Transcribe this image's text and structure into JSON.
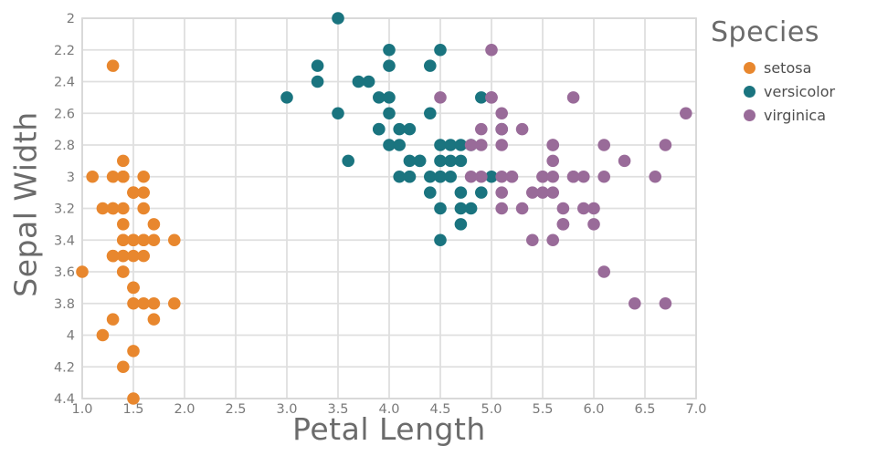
{
  "chart_data": {
    "type": "scatter",
    "xlabel": "Petal Length",
    "ylabel": "Sepal Width",
    "legend": {
      "title": "Species",
      "position": "top-right-outside"
    },
    "axes": {
      "x": {
        "min": 1.0,
        "max": 7.0,
        "tick_values": [
          1.0,
          1.5,
          2.0,
          2.5,
          3.0,
          3.5,
          4.0,
          4.5,
          5.0,
          5.5,
          6.0,
          6.5,
          7.0
        ],
        "tick_labels": [
          "1.0",
          "1.5",
          "2.0",
          "2.5",
          "3.0",
          "3.5",
          "4.0",
          "4.5",
          "5.0",
          "5.5",
          "6.0",
          "6.5",
          "7.0"
        ]
      },
      "y": {
        "min": 2.0,
        "max": 4.4,
        "reversed": true,
        "tick_values": [
          2.0,
          2.2,
          2.4,
          2.6,
          2.8,
          3.0,
          3.2,
          3.4,
          3.6,
          3.8,
          4.0,
          4.2,
          4.4
        ],
        "tick_labels": [
          "2",
          "2.2",
          "2.4",
          "2.6",
          "2.8",
          "3",
          "3.2",
          "3.4",
          "3.6",
          "3.8",
          "4",
          "4.2",
          "4.4"
        ]
      }
    },
    "grid": true,
    "colors": {
      "grid": "#dfdfdf",
      "frame": "#d8d8d8",
      "tick_text": "#7a7a7a",
      "axis_title_text": "#6b6b6b",
      "legend_text": "#4e4e4e"
    },
    "series": [
      {
        "name": "setosa",
        "color": "#E8872E",
        "points": [
          [
            1.4,
            3.5
          ],
          [
            1.4,
            3.0
          ],
          [
            1.3,
            3.2
          ],
          [
            1.5,
            3.1
          ],
          [
            1.4,
            3.6
          ],
          [
            1.7,
            3.9
          ],
          [
            1.4,
            3.4
          ],
          [
            1.5,
            3.4
          ],
          [
            1.4,
            2.9
          ],
          [
            1.5,
            3.1
          ],
          [
            1.5,
            3.7
          ],
          [
            1.6,
            3.4
          ],
          [
            1.4,
            3.0
          ],
          [
            1.1,
            3.0
          ],
          [
            1.2,
            4.0
          ],
          [
            1.5,
            4.4
          ],
          [
            1.3,
            3.9
          ],
          [
            1.4,
            3.5
          ],
          [
            1.7,
            3.8
          ],
          [
            1.5,
            3.8
          ],
          [
            1.7,
            3.4
          ],
          [
            1.5,
            3.7
          ],
          [
            1.0,
            3.6
          ],
          [
            1.7,
            3.3
          ],
          [
            1.9,
            3.4
          ],
          [
            1.6,
            3.0
          ],
          [
            1.6,
            3.4
          ],
          [
            1.5,
            3.5
          ],
          [
            1.4,
            3.4
          ],
          [
            1.6,
            3.2
          ],
          [
            1.6,
            3.1
          ],
          [
            1.5,
            3.4
          ],
          [
            1.5,
            4.1
          ],
          [
            1.4,
            4.2
          ],
          [
            1.5,
            3.1
          ],
          [
            1.2,
            3.2
          ],
          [
            1.3,
            3.5
          ],
          [
            1.4,
            3.6
          ],
          [
            1.3,
            3.0
          ],
          [
            1.5,
            3.4
          ],
          [
            1.3,
            3.5
          ],
          [
            1.3,
            2.3
          ],
          [
            1.3,
            3.2
          ],
          [
            1.6,
            3.5
          ],
          [
            1.9,
            3.8
          ],
          [
            1.4,
            3.0
          ],
          [
            1.6,
            3.8
          ],
          [
            1.4,
            3.2
          ],
          [
            1.5,
            3.7
          ],
          [
            1.4,
            3.3
          ]
        ]
      },
      {
        "name": "versicolor",
        "color": "#1A747F",
        "points": [
          [
            4.7,
            3.2
          ],
          [
            4.5,
            3.2
          ],
          [
            4.9,
            3.1
          ],
          [
            4.0,
            2.3
          ],
          [
            4.6,
            2.8
          ],
          [
            4.5,
            2.8
          ],
          [
            4.7,
            3.3
          ],
          [
            3.3,
            2.4
          ],
          [
            4.6,
            2.9
          ],
          [
            3.9,
            2.7
          ],
          [
            3.5,
            2.0
          ],
          [
            4.2,
            3.0
          ],
          [
            4.0,
            2.2
          ],
          [
            4.7,
            2.9
          ],
          [
            3.6,
            2.9
          ],
          [
            4.4,
            3.1
          ],
          [
            4.5,
            3.0
          ],
          [
            4.1,
            2.7
          ],
          [
            4.5,
            2.2
          ],
          [
            3.9,
            2.5
          ],
          [
            4.8,
            3.2
          ],
          [
            4.0,
            2.8
          ],
          [
            4.9,
            2.5
          ],
          [
            4.7,
            2.8
          ],
          [
            4.3,
            2.9
          ],
          [
            4.4,
            3.0
          ],
          [
            4.8,
            2.8
          ],
          [
            5.0,
            3.0
          ],
          [
            4.5,
            2.9
          ],
          [
            3.5,
            2.6
          ],
          [
            3.8,
            2.4
          ],
          [
            3.7,
            2.4
          ],
          [
            3.9,
            2.7
          ],
          [
            5.1,
            2.7
          ],
          [
            4.5,
            3.0
          ],
          [
            4.5,
            3.4
          ],
          [
            4.7,
            3.1
          ],
          [
            4.4,
            2.3
          ],
          [
            4.1,
            3.0
          ],
          [
            4.0,
            2.5
          ],
          [
            4.4,
            2.6
          ],
          [
            4.6,
            3.0
          ],
          [
            4.0,
            2.6
          ],
          [
            3.3,
            2.3
          ],
          [
            4.2,
            2.7
          ],
          [
            4.2,
            3.0
          ],
          [
            4.2,
            2.9
          ],
          [
            4.3,
            2.9
          ],
          [
            3.0,
            2.5
          ],
          [
            4.1,
            2.8
          ]
        ]
      },
      {
        "name": "virginica",
        "color": "#996B99",
        "points": [
          [
            6.0,
            3.3
          ],
          [
            5.1,
            2.7
          ],
          [
            5.9,
            3.0
          ],
          [
            5.6,
            2.9
          ],
          [
            5.8,
            3.0
          ],
          [
            6.6,
            3.0
          ],
          [
            4.5,
            2.5
          ],
          [
            6.3,
            2.9
          ],
          [
            5.8,
            2.5
          ],
          [
            6.1,
            3.6
          ],
          [
            5.1,
            3.2
          ],
          [
            5.3,
            2.7
          ],
          [
            5.5,
            3.0
          ],
          [
            5.0,
            2.5
          ],
          [
            5.1,
            2.8
          ],
          [
            5.3,
            3.2
          ],
          [
            5.5,
            3.0
          ],
          [
            6.7,
            3.8
          ],
          [
            6.9,
            2.6
          ],
          [
            5.0,
            2.2
          ],
          [
            5.7,
            3.2
          ],
          [
            4.9,
            2.8
          ],
          [
            6.7,
            2.8
          ],
          [
            4.9,
            2.7
          ],
          [
            5.7,
            3.3
          ],
          [
            6.0,
            3.2
          ],
          [
            4.8,
            2.8
          ],
          [
            4.9,
            3.0
          ],
          [
            5.6,
            2.8
          ],
          [
            5.8,
            3.0
          ],
          [
            6.1,
            2.8
          ],
          [
            6.4,
            3.8
          ],
          [
            5.6,
            2.8
          ],
          [
            5.1,
            2.6
          ],
          [
            5.6,
            3.0
          ],
          [
            6.1,
            3.0
          ],
          [
            5.6,
            3.4
          ],
          [
            5.5,
            3.1
          ],
          [
            4.8,
            3.0
          ],
          [
            5.4,
            3.1
          ],
          [
            5.6,
            3.1
          ],
          [
            5.1,
            3.1
          ],
          [
            5.1,
            2.7
          ],
          [
            5.9,
            3.2
          ],
          [
            5.7,
            3.3
          ],
          [
            5.2,
            3.0
          ],
          [
            5.0,
            2.5
          ],
          [
            5.2,
            3.0
          ],
          [
            5.4,
            3.4
          ],
          [
            5.1,
            3.0
          ]
        ]
      }
    ]
  }
}
